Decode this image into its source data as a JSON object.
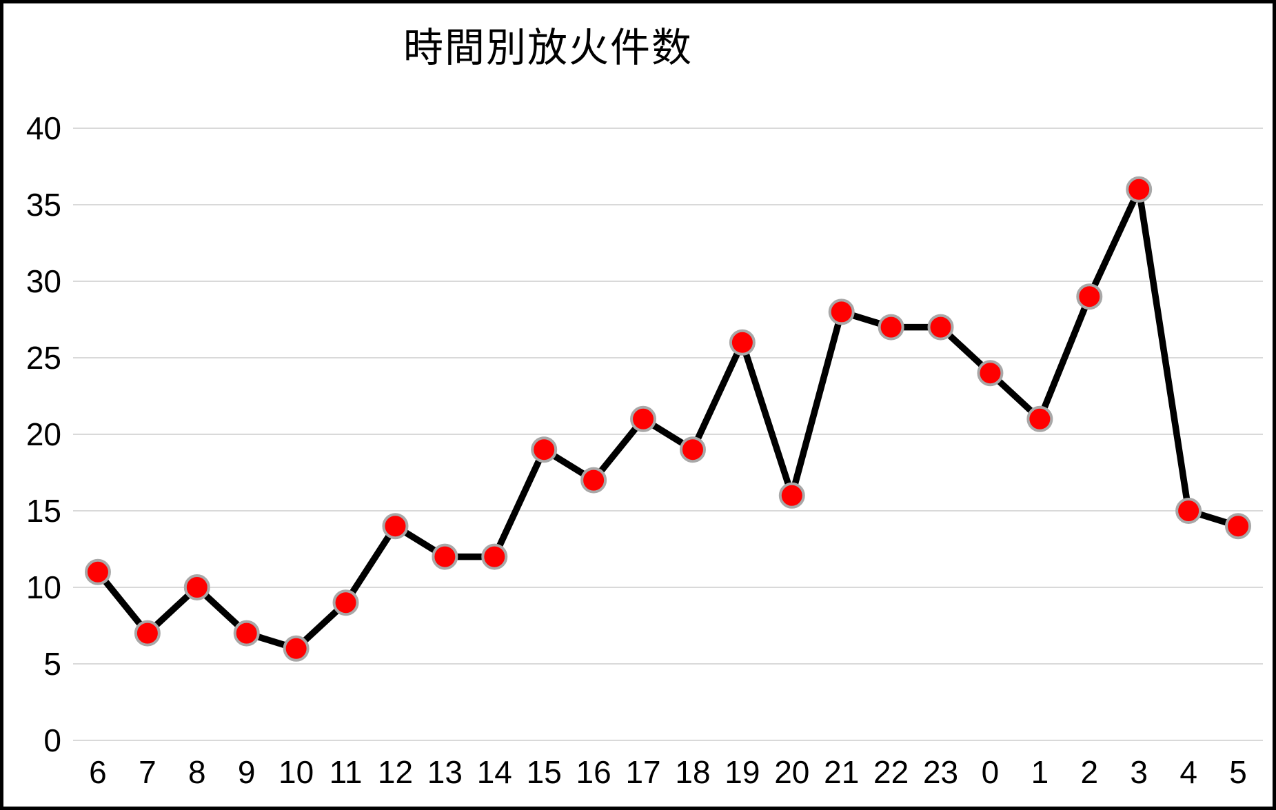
{
  "title": "時間別放火件数",
  "chart_data": {
    "type": "line",
    "title": "時間別放火件数",
    "categories": [
      "6",
      "7",
      "8",
      "9",
      "10",
      "11",
      "12",
      "13",
      "14",
      "15",
      "16",
      "17",
      "18",
      "19",
      "20",
      "21",
      "22",
      "23",
      "0",
      "1",
      "2",
      "3",
      "4",
      "5"
    ],
    "values": [
      11,
      7,
      10,
      7,
      6,
      9,
      14,
      12,
      12,
      19,
      17,
      21,
      19,
      26,
      16,
      28,
      27,
      27,
      24,
      21,
      29,
      36,
      15,
      14
    ],
    "xlabel": "",
    "ylabel": "",
    "ylim": [
      0,
      40
    ],
    "ytick_step": 5,
    "yticklabels": [
      "0",
      "5",
      "10",
      "15",
      "20",
      "25",
      "30",
      "35",
      "40"
    ],
    "grid": "horizontal",
    "legend": "none",
    "colors": {
      "line": "#000000",
      "marker_fill": "#FF0000",
      "marker_border": "#A8A8A8",
      "gridline": "#D9D9D9",
      "text": "#000000",
      "frame": "#000000",
      "background": "#FFFFFF"
    }
  }
}
